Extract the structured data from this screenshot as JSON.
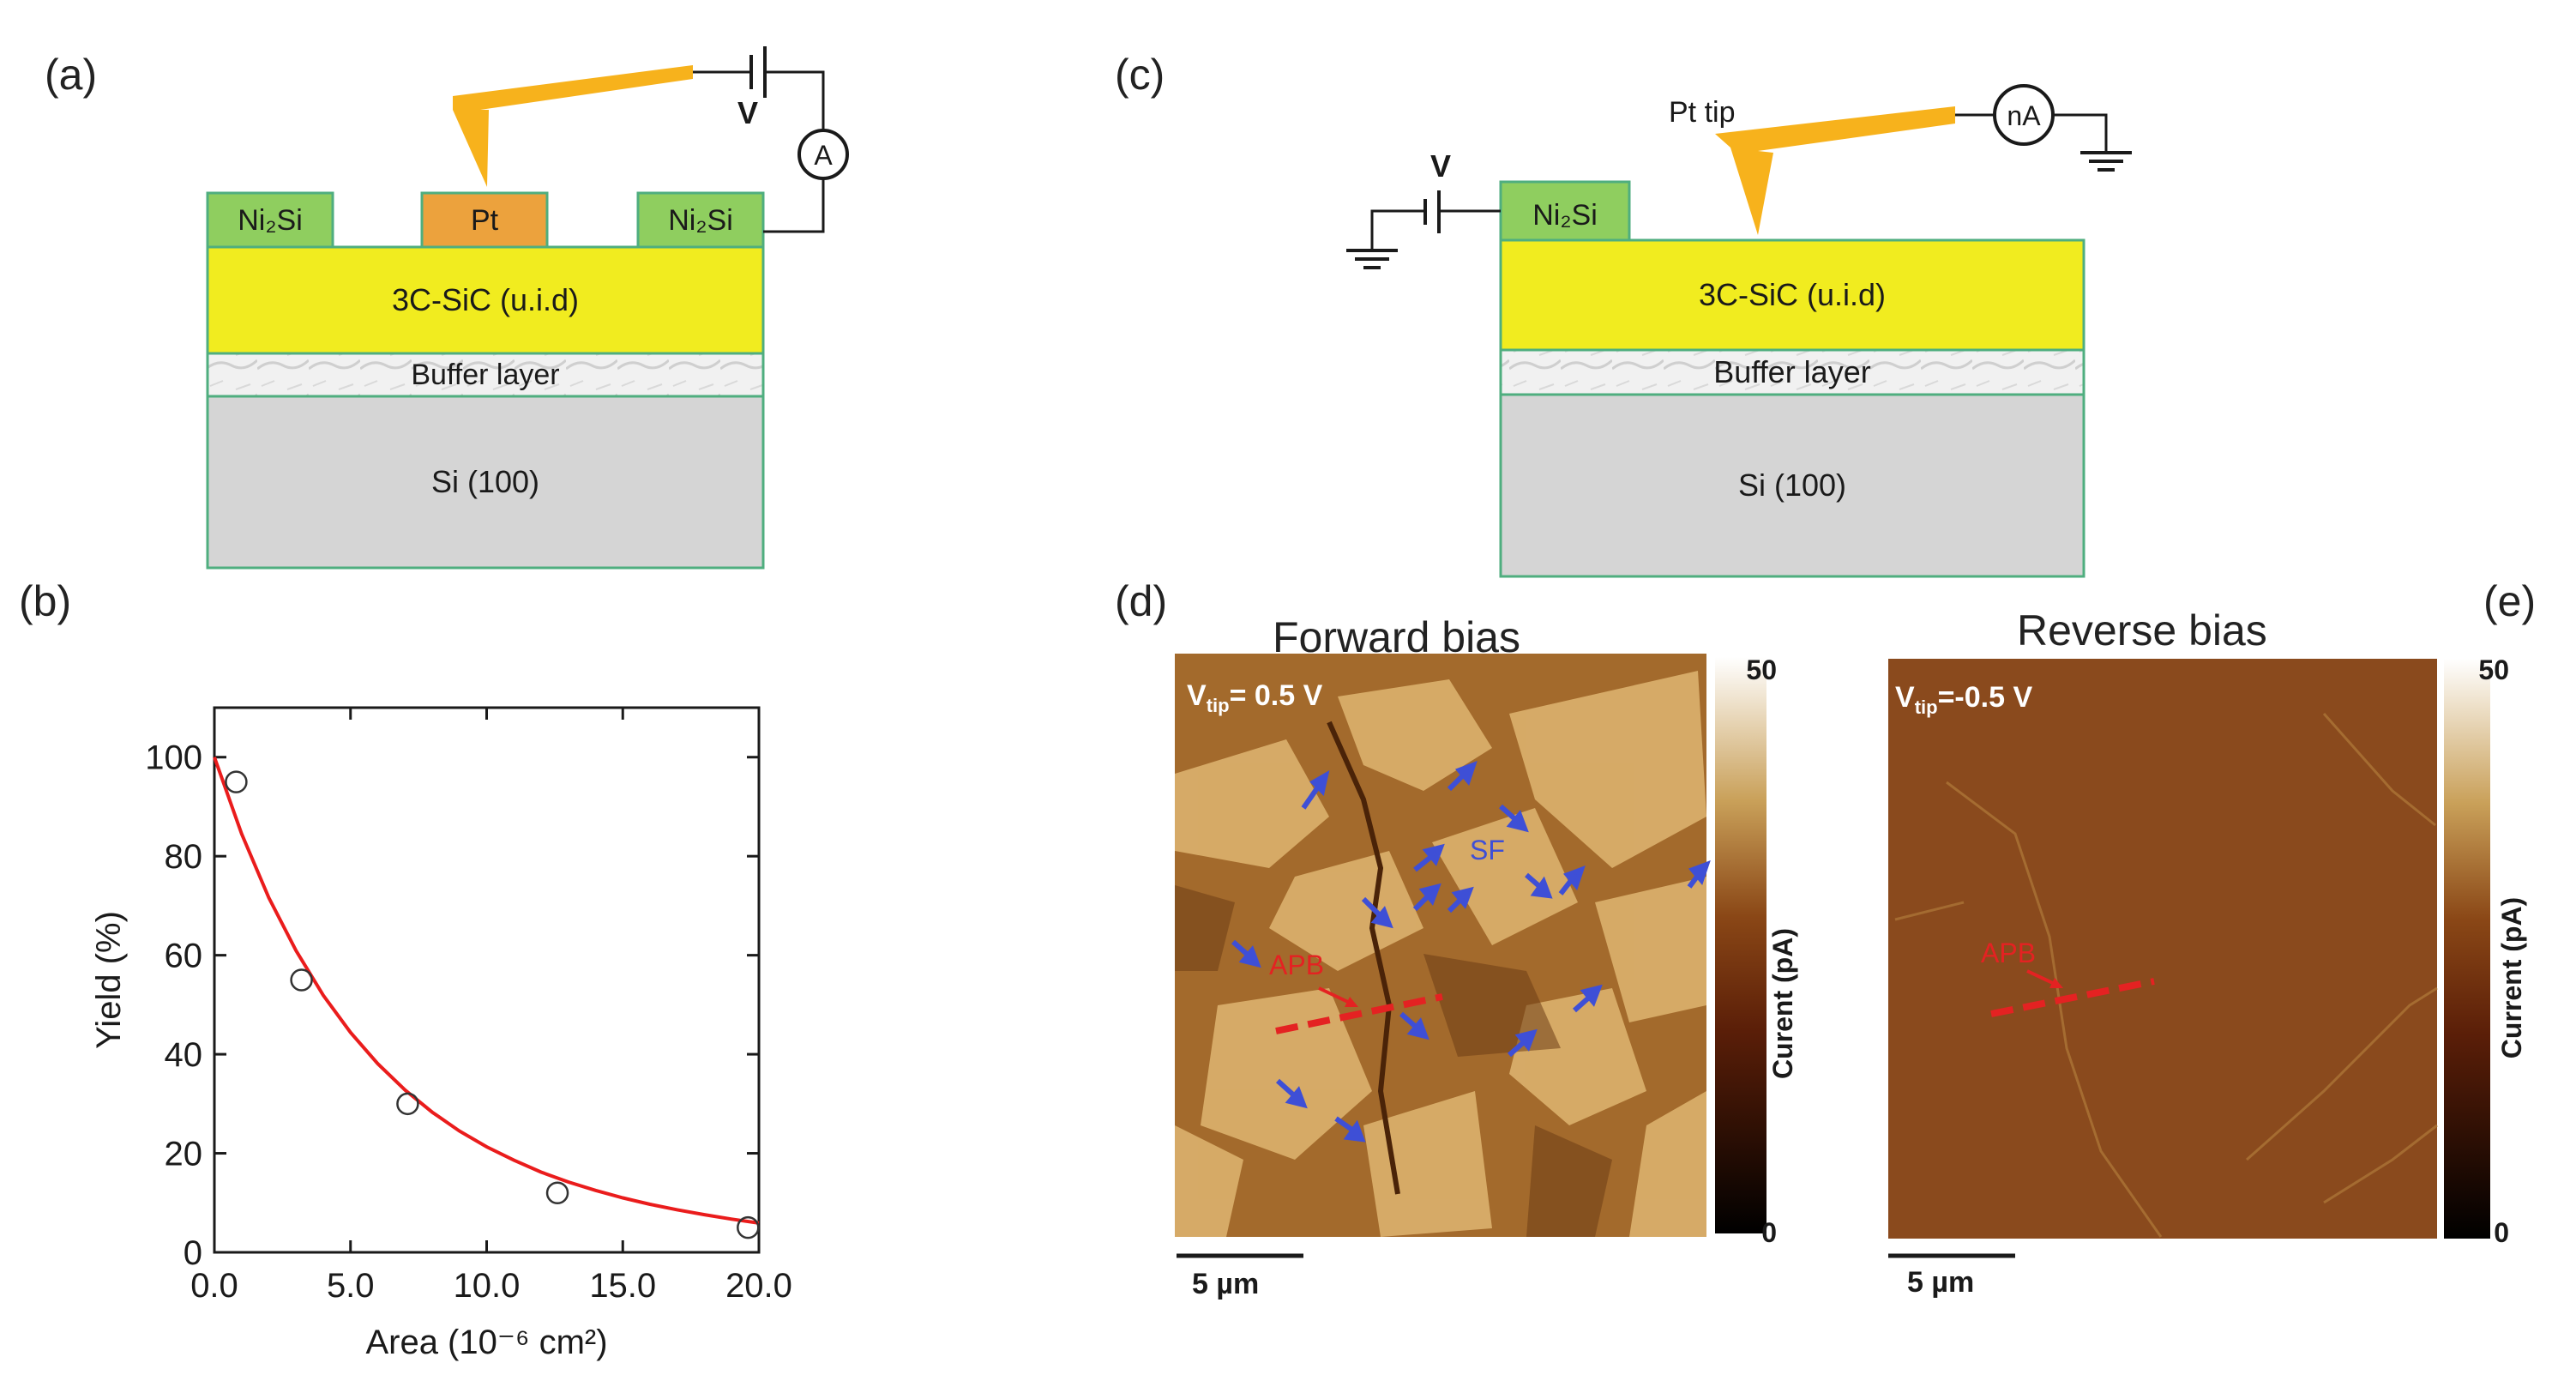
{
  "panels": {
    "a": {
      "label": "(a)",
      "contact_left": "Ni₂Si",
      "contact_center": "Pt",
      "contact_right": "Ni₂Si",
      "epi_layer": "3C-SiC (u.i.d)",
      "buffer_layer": "Buffer layer",
      "substrate": "Si (100)",
      "voltage_symbol": "V",
      "ammeter_symbol": "A"
    },
    "b": {
      "label": "(b)"
    },
    "c": {
      "label": "(c)",
      "tip_label": "Pt tip",
      "ammeter_symbol": "nA",
      "voltage_symbol": "V",
      "contact_left": "Ni₂Si",
      "epi_layer": "3C-SiC (u.i.d)",
      "buffer_layer": "Buffer layer",
      "substrate": "Si (100)"
    },
    "d": {
      "label": "(d)",
      "title": "Forward bias",
      "vtip_main": "V",
      "vtip_sub": "tip",
      "vtip_value": "= 0.5 V",
      "sf_label": "SF",
      "apb_label": "APB",
      "scalebar": "5 µm",
      "colorbar_max": "50",
      "colorbar_min": "0",
      "colorbar_label": "Curent (pA)"
    },
    "e": {
      "label": "(e)",
      "title": "Reverse bias",
      "vtip_main": "V",
      "vtip_sub": "tip",
      "vtip_value": "=-0.5 V",
      "apb_label": "APB",
      "scalebar": "5 µm",
      "colorbar_max": "50",
      "colorbar_min": "0",
      "colorbar_label": "Current (pA)"
    }
  },
  "colors": {
    "ni2si": "#8fce5f",
    "pt": "#eca23d",
    "sic": "#f1ec1f",
    "si": "#d5d5d5",
    "tip": "#f7b21c",
    "outline": "#4fae7f",
    "fit_line": "#ea1c1c",
    "arrow_blue": "#3e4fd6",
    "apb_red": "#e42222"
  },
  "chart_data": {
    "type": "scatter",
    "title": "",
    "xlabel": "Area (10⁻⁶ cm²)",
    "ylabel": "Yield (%)",
    "xlim": [
      0,
      20
    ],
    "ylim": [
      0,
      110
    ],
    "x_ticks": [
      "0.0",
      "5.0",
      "10.0",
      "15.0",
      "20.0"
    ],
    "y_ticks": [
      "0",
      "20",
      "40",
      "60",
      "80",
      "100"
    ],
    "grid": false,
    "series": [
      {
        "kind": "points",
        "marker": "open-circle",
        "x": [
          0.8,
          3.2,
          7.1,
          12.6,
          19.6
        ],
        "y": [
          95,
          55,
          30,
          12,
          5
        ]
      },
      {
        "kind": "fit-line",
        "color": "#ea1c1c",
        "x": [
          0,
          1,
          2,
          3,
          4,
          5,
          6,
          7,
          8,
          9,
          10,
          11,
          12,
          13,
          14,
          15,
          16,
          17,
          18,
          19,
          20
        ],
        "y": [
          100,
          84.5,
          71.6,
          60.9,
          51.9,
          44.4,
          38.1,
          32.8,
          28.3,
          24.5,
          21.3,
          18.6,
          16.2,
          14.2,
          12.5,
          11.0,
          9.7,
          8.6,
          7.6,
          6.7,
          5.9
        ]
      }
    ]
  }
}
